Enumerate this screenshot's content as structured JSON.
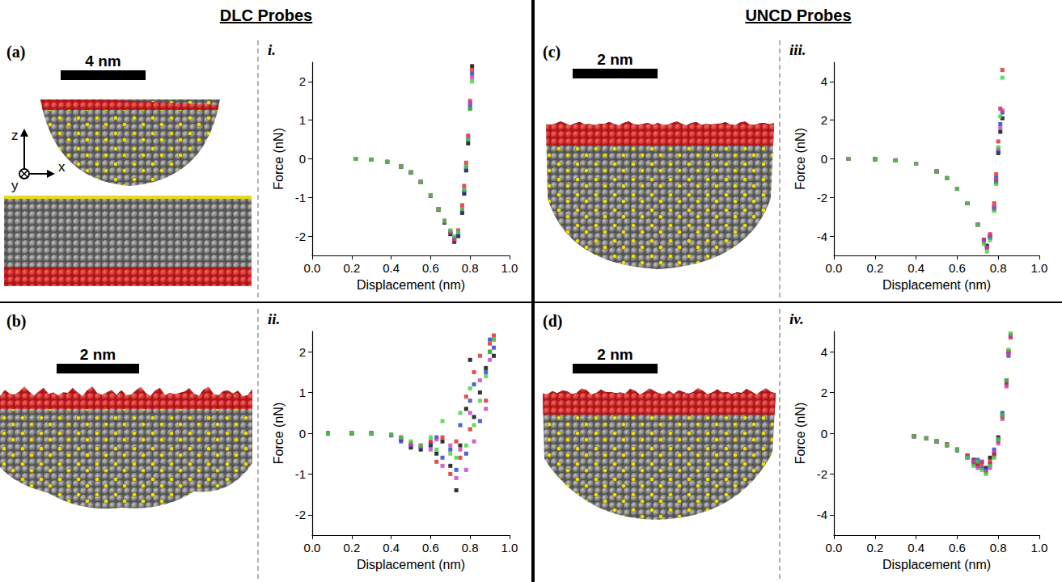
{
  "figure": {
    "headers": [
      "DLC Probes",
      "UNCD Probes"
    ],
    "images": [
      {
        "label": "(a)",
        "scale_bar": "4 nm",
        "axes": [
          "z",
          "x",
          "y"
        ]
      },
      {
        "label": "(b)",
        "scale_bar": "2 nm"
      },
      {
        "label": "(c)",
        "scale_bar": "2 nm"
      },
      {
        "label": "(d)",
        "scale_bar": "2 nm"
      }
    ]
  },
  "chart_data": [
    {
      "type": "scatter",
      "title": "i.",
      "x_label": "Displacement (nm)",
      "y_label": "Force (nN)",
      "xlim": [
        0,
        1
      ],
      "xticks": [
        {
          "value": 0,
          "label": "0.0"
        },
        0.2,
        0.4,
        0.6,
        0.8,
        {
          "value": 1,
          "label": "1.0"
        }
      ],
      "ylim": [
        -2.5,
        2.5
      ],
      "yticks": [
        -2,
        -1,
        0,
        1,
        2
      ],
      "grid": false,
      "marker": "square",
      "series": [
        {
          "color": "#000000",
          "x": [
            0.22,
            0.3,
            0.38,
            0.45,
            0.5,
            0.55,
            0.6,
            0.64,
            0.67,
            0.7,
            0.72,
            0.74,
            0.76,
            0.77,
            0.78,
            0.79,
            0.8,
            0.81
          ],
          "values": [
            0,
            -0.02,
            -0.08,
            -0.2,
            -0.35,
            -0.6,
            -0.96,
            -1.32,
            -1.65,
            -1.95,
            -2.15,
            -2.0,
            -1.4,
            -0.9,
            -0.3,
            0.4,
            1.3,
            2.4
          ]
        },
        {
          "color": "#2040c0",
          "x": [
            0.22,
            0.3,
            0.38,
            0.45,
            0.5,
            0.55,
            0.6,
            0.64,
            0.67,
            0.7,
            0.72,
            0.74,
            0.76,
            0.77,
            0.78,
            0.79,
            0.8,
            0.81
          ],
          "values": [
            0,
            -0.02,
            -0.08,
            -0.2,
            -0.36,
            -0.6,
            -0.95,
            -1.3,
            -1.62,
            -1.9,
            -2.05,
            -1.95,
            -1.35,
            -0.85,
            -0.25,
            0.5,
            1.4,
            2.2
          ]
        },
        {
          "color": "#e02020",
          "x": [
            0.22,
            0.3,
            0.38,
            0.45,
            0.5,
            0.55,
            0.6,
            0.64,
            0.67,
            0.7,
            0.72,
            0.74,
            0.76,
            0.77,
            0.78,
            0.79,
            0.8,
            0.81
          ],
          "values": [
            0,
            -0.02,
            -0.08,
            -0.2,
            -0.35,
            -0.6,
            -0.95,
            -1.3,
            -1.6,
            -1.88,
            -2.1,
            -1.85,
            -1.2,
            -0.7,
            -0.1,
            0.6,
            1.5,
            2.3
          ]
        },
        {
          "color": "#c040c0",
          "x": [
            0.22,
            0.3,
            0.38,
            0.45,
            0.5,
            0.55,
            0.6,
            0.64,
            0.67,
            0.7,
            0.72,
            0.74,
            0.76,
            0.77,
            0.78,
            0.79,
            0.8,
            0.81
          ],
          "values": [
            0,
            -0.02,
            -0.08,
            -0.2,
            -0.35,
            -0.6,
            -0.95,
            -1.31,
            -1.63,
            -1.9,
            -2.08,
            -1.9,
            -1.3,
            -0.8,
            -0.2,
            0.55,
            1.45,
            2.1
          ]
        },
        {
          "color": "#40d040",
          "x": [
            0.22,
            0.3,
            0.38,
            0.45,
            0.5,
            0.55,
            0.6,
            0.64,
            0.67,
            0.7,
            0.72,
            0.74,
            0.76,
            0.77,
            0.78,
            0.79,
            0.8,
            0.81
          ],
          "values": [
            0,
            -0.02,
            -0.08,
            -0.2,
            -0.35,
            -0.6,
            -0.95,
            -1.3,
            -1.6,
            -1.85,
            -2.0,
            -1.9,
            -1.3,
            -0.8,
            -0.2,
            0.5,
            1.3,
            2.0
          ]
        }
      ]
    },
    {
      "type": "scatter",
      "title": "ii.",
      "x_label": "Displacement (nm)",
      "y_label": "Force (nN)",
      "xlim": [
        0,
        1
      ],
      "xticks": [
        {
          "value": 0,
          "label": "0.0"
        },
        0.2,
        0.4,
        0.6,
        0.8,
        {
          "value": 1,
          "label": "1.0"
        }
      ],
      "ylim": [
        -2.5,
        2.5
      ],
      "yticks": [
        -2,
        -1,
        0,
        1,
        2
      ],
      "grid": false,
      "marker": "square",
      "series": [
        {
          "color": "#000000",
          "x": [
            0.08,
            0.2,
            0.3,
            0.4,
            0.45,
            0.5,
            0.55,
            0.6,
            0.63,
            0.66,
            0.7,
            0.73,
            0.75,
            0.78,
            0.8,
            0.82,
            0.85,
            0.88,
            0.9,
            0.92
          ],
          "values": [
            0,
            0,
            0,
            -0.05,
            -0.15,
            -0.35,
            -0.4,
            -0.3,
            -0.5,
            -0.2,
            -0.8,
            -1.4,
            -0.3,
            0.6,
            1.8,
            0.4,
            1.0,
            1.6,
            2.0,
            1.9
          ]
        },
        {
          "color": "#2040c0",
          "x": [
            0.08,
            0.2,
            0.3,
            0.4,
            0.45,
            0.5,
            0.55,
            0.6,
            0.63,
            0.66,
            0.7,
            0.73,
            0.75,
            0.78,
            0.8,
            0.82,
            0.85,
            0.88,
            0.9,
            0.92
          ],
          "values": [
            0,
            0,
            0,
            -0.05,
            -0.2,
            -0.3,
            -0.35,
            -0.25,
            -0.1,
            -0.6,
            -0.4,
            -0.9,
            0.2,
            -0.5,
            0.8,
            1.2,
            0.3,
            1.5,
            2.3,
            2.1
          ]
        },
        {
          "color": "#e02020",
          "x": [
            0.08,
            0.2,
            0.3,
            0.4,
            0.45,
            0.5,
            0.55,
            0.6,
            0.63,
            0.66,
            0.7,
            0.73,
            0.75,
            0.78,
            0.8,
            0.82,
            0.85,
            0.88,
            0.9,
            0.92
          ],
          "values": [
            0,
            0,
            0,
            -0.03,
            -0.1,
            -0.25,
            -0.3,
            -0.2,
            -0.7,
            -0.1,
            -1.0,
            -0.2,
            -0.6,
            0.9,
            0.1,
            1.5,
            1.9,
            0.8,
            2.2,
            2.4
          ]
        },
        {
          "color": "#c040c0",
          "x": [
            0.08,
            0.2,
            0.3,
            0.4,
            0.45,
            0.5,
            0.55,
            0.6,
            0.63,
            0.66,
            0.7,
            0.73,
            0.75,
            0.78,
            0.8,
            0.82,
            0.85,
            0.88,
            0.9,
            0.92
          ],
          "values": [
            0,
            0,
            0,
            -0.04,
            -0.12,
            -0.28,
            -0.32,
            -0.4,
            -0.15,
            -0.8,
            -0.3,
            -1.1,
            -0.4,
            -0.9,
            0.5,
            -0.2,
            1.3,
            0.6,
            1.8,
            2.3
          ]
        },
        {
          "color": "#40d040",
          "x": [
            0.08,
            0.2,
            0.3,
            0.4,
            0.45,
            0.5,
            0.55,
            0.6,
            0.63,
            0.66,
            0.7,
            0.73,
            0.75,
            0.78,
            0.8,
            0.82,
            0.85,
            0.88,
            0.9,
            0.92
          ],
          "values": [
            0,
            0,
            0,
            -0.03,
            -0.1,
            -0.2,
            -0.3,
            -0.1,
            -0.4,
            0.3,
            -0.5,
            -0.6,
            0.5,
            -0.3,
            1.1,
            0.2,
            0.8,
            1.4,
            2.0,
            2.3
          ]
        }
      ]
    },
    {
      "type": "scatter",
      "title": "iii.",
      "x_label": "Displacement (nm)",
      "y_label": "Force (nN)",
      "xlim": [
        0,
        1
      ],
      "xticks": [
        {
          "value": 0,
          "label": "0.0"
        },
        0.2,
        0.4,
        0.6,
        0.8,
        {
          "value": 1,
          "label": "1.0"
        }
      ],
      "ylim": [
        -5,
        5
      ],
      "yticks": [
        -4,
        -2,
        0,
        2,
        4
      ],
      "grid": false,
      "marker": "square",
      "series": [
        {
          "color": "#000000",
          "x": [
            0.07,
            0.2,
            0.3,
            0.4,
            0.5,
            0.55,
            0.6,
            0.65,
            0.7,
            0.73,
            0.745,
            0.76,
            0.78,
            0.79,
            0.8,
            0.81,
            0.82
          ],
          "values": [
            0,
            -0.02,
            -0.08,
            -0.25,
            -0.65,
            -1.0,
            -1.55,
            -2.3,
            -3.4,
            -4.2,
            -4.5,
            -4.0,
            -2.6,
            -1.2,
            0.3,
            1.4,
            2.1
          ]
        },
        {
          "color": "#2040c0",
          "x": [
            0.07,
            0.2,
            0.3,
            0.4,
            0.5,
            0.55,
            0.6,
            0.65,
            0.7,
            0.73,
            0.745,
            0.76,
            0.78,
            0.79,
            0.8,
            0.81,
            0.82
          ],
          "values": [
            0,
            -0.02,
            -0.08,
            -0.25,
            -0.65,
            -1.0,
            -1.55,
            -2.3,
            -3.4,
            -4.3,
            -4.55,
            -4.1,
            -2.5,
            -1.0,
            0.4,
            1.8,
            2.4
          ]
        },
        {
          "color": "#e02020",
          "x": [
            0.07,
            0.2,
            0.3,
            0.4,
            0.5,
            0.55,
            0.6,
            0.65,
            0.7,
            0.73,
            0.745,
            0.76,
            0.78,
            0.79,
            0.8,
            0.81,
            0.82
          ],
          "values": [
            0,
            -0.02,
            -0.08,
            -0.25,
            -0.65,
            -1.0,
            -1.55,
            -2.3,
            -3.4,
            -4.2,
            -4.6,
            -3.9,
            -2.3,
            -0.8,
            0.9,
            2.6,
            4.6
          ]
        },
        {
          "color": "#c040c0",
          "x": [
            0.07,
            0.2,
            0.3,
            0.4,
            0.5,
            0.55,
            0.6,
            0.65,
            0.7,
            0.73,
            0.745,
            0.76,
            0.78,
            0.79,
            0.8,
            0.81,
            0.82
          ],
          "values": [
            0,
            -0.02,
            -0.08,
            -0.25,
            -0.65,
            -1.0,
            -1.55,
            -2.3,
            -3.4,
            -4.25,
            -4.6,
            -4.0,
            -2.5,
            -1.1,
            0.5,
            1.6,
            2.5
          ]
        },
        {
          "color": "#40d040",
          "x": [
            0.07,
            0.2,
            0.3,
            0.4,
            0.5,
            0.55,
            0.6,
            0.65,
            0.7,
            0.73,
            0.745,
            0.76,
            0.78,
            0.79,
            0.8,
            0.81,
            0.82
          ],
          "values": [
            0,
            -0.02,
            -0.08,
            -0.25,
            -0.65,
            -1.0,
            -1.55,
            -2.3,
            -3.4,
            -4.4,
            -4.8,
            -4.2,
            -2.7,
            -1.3,
            0.6,
            2.2,
            4.2
          ]
        }
      ]
    },
    {
      "type": "scatter",
      "title": "iv.",
      "x_label": "Displacement (nm)",
      "y_label": "Force (nN)",
      "xlim": [
        0,
        1
      ],
      "xticks": [
        {
          "value": 0,
          "label": "0.0"
        },
        0.2,
        0.4,
        0.6,
        0.8,
        {
          "value": 1,
          "label": "1.0"
        }
      ],
      "ylim": [
        -5,
        5
      ],
      "yticks": [
        -4,
        -2,
        0,
        2,
        4
      ],
      "grid": false,
      "marker": "square",
      "series": [
        {
          "color": "#000000",
          "x": [
            0.39,
            0.45,
            0.5,
            0.55,
            0.6,
            0.65,
            0.68,
            0.7,
            0.72,
            0.74,
            0.76,
            0.78,
            0.8,
            0.82,
            0.84,
            0.85,
            0.86
          ],
          "values": [
            -0.15,
            -0.25,
            -0.4,
            -0.55,
            -0.8,
            -1.1,
            -1.3,
            -1.5,
            -1.4,
            -1.7,
            -1.2,
            -1.0,
            -0.2,
            0.9,
            2.6,
            4.0,
            4.8
          ]
        },
        {
          "color": "#2040c0",
          "x": [
            0.39,
            0.45,
            0.5,
            0.55,
            0.6,
            0.65,
            0.68,
            0.7,
            0.72,
            0.74,
            0.76,
            0.78,
            0.8,
            0.82,
            0.84,
            0.85,
            0.86
          ],
          "values": [
            -0.15,
            -0.25,
            -0.4,
            -0.6,
            -0.85,
            -1.2,
            -1.5,
            -1.3,
            -1.7,
            -1.8,
            -1.5,
            -0.8,
            -0.3,
            1.0,
            2.5,
            3.8,
            4.8
          ]
        },
        {
          "color": "#e02020",
          "x": [
            0.39,
            0.45,
            0.5,
            0.55,
            0.6,
            0.65,
            0.68,
            0.7,
            0.72,
            0.74,
            0.76,
            0.78,
            0.8,
            0.82,
            0.84,
            0.85,
            0.86
          ],
          "values": [
            -0.15,
            -0.25,
            -0.4,
            -0.55,
            -0.8,
            -1.1,
            -1.4,
            -1.6,
            -1.5,
            -1.9,
            -1.4,
            -1.1,
            -0.4,
            0.8,
            2.4,
            4.0,
            4.7
          ]
        },
        {
          "color": "#c040c0",
          "x": [
            0.39,
            0.45,
            0.5,
            0.55,
            0.6,
            0.65,
            0.68,
            0.7,
            0.72,
            0.74,
            0.76,
            0.78,
            0.8,
            0.82,
            0.84,
            0.85,
            0.86
          ],
          "values": [
            -0.15,
            -0.25,
            -0.4,
            -0.58,
            -0.82,
            -1.15,
            -1.35,
            -1.7,
            -1.4,
            -1.85,
            -1.7,
            -0.9,
            -0.5,
            0.7,
            2.3,
            3.9,
            4.8
          ]
        },
        {
          "color": "#40d040",
          "x": [
            0.39,
            0.45,
            0.5,
            0.55,
            0.6,
            0.65,
            0.68,
            0.7,
            0.72,
            0.74,
            0.76,
            0.78,
            0.8,
            0.82,
            0.84,
            0.85,
            0.86
          ],
          "values": [
            -0.15,
            -0.25,
            -0.4,
            -0.57,
            -0.82,
            -1.2,
            -1.6,
            -1.4,
            -1.8,
            -2.0,
            -1.6,
            -1.2,
            -0.3,
            0.9,
            2.6,
            4.1,
            4.9
          ]
        }
      ]
    }
  ]
}
